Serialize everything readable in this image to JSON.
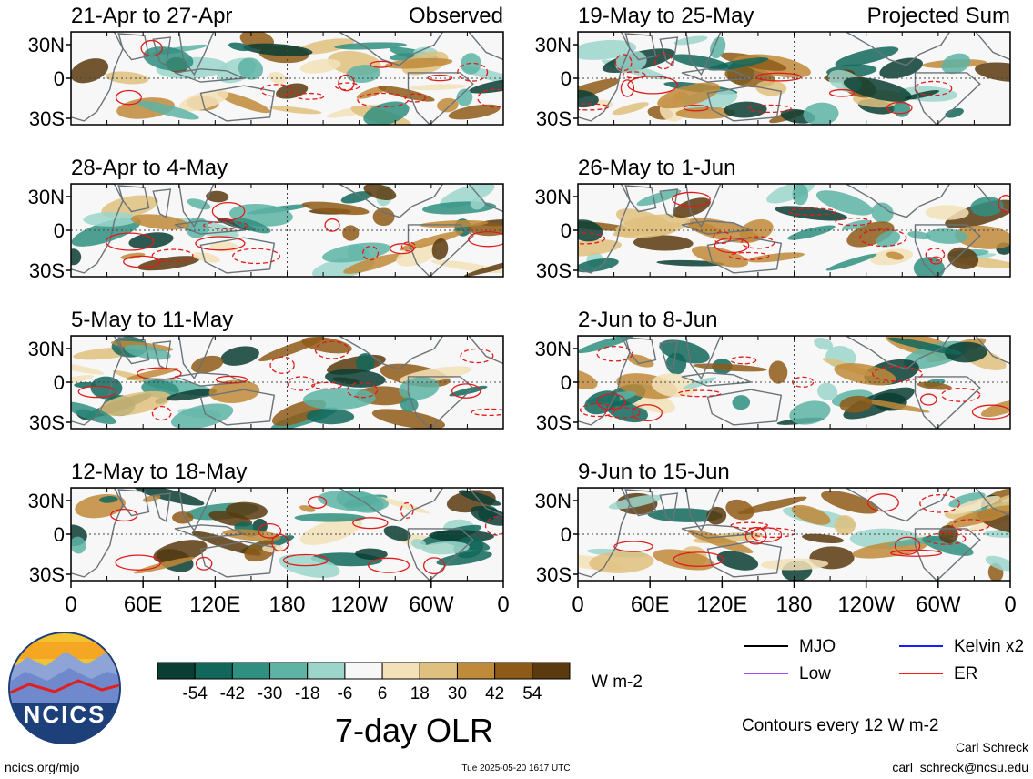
{
  "chart_data": {
    "type": "heatmap",
    "title": "7-day OLR",
    "units": "W m-2",
    "contour_note": "Contours every 12 W m-2",
    "columns": [
      {
        "label": "Observed"
      },
      {
        "label": "Projected Sum"
      }
    ],
    "panels": [
      {
        "col": 0,
        "row": 0,
        "period": "21-Apr to 27-Apr"
      },
      {
        "col": 0,
        "row": 1,
        "period": "28-Apr to 4-May"
      },
      {
        "col": 0,
        "row": 2,
        "period": "5-May to 11-May"
      },
      {
        "col": 0,
        "row": 3,
        "period": "12-May to 18-May"
      },
      {
        "col": 1,
        "row": 0,
        "period": "19-May to 25-May"
      },
      {
        "col": 1,
        "row": 1,
        "period": "26-May to 1-Jun"
      },
      {
        "col": 1,
        "row": 2,
        "period": "2-Jun to 8-Jun"
      },
      {
        "col": 1,
        "row": 3,
        "period": "9-Jun to 15-Jun"
      }
    ],
    "lat_ticks": [
      "30N",
      "0",
      "30S"
    ],
    "lon_ticks": [
      "0",
      "60E",
      "120E",
      "180",
      "120W",
      "60W",
      "0"
    ],
    "colorbar": {
      "ticks": [
        "-54",
        "-42",
        "-30",
        "-18",
        "-6",
        "6",
        "18",
        "30",
        "42",
        "54"
      ],
      "colors": [
        "#0a3d33",
        "#10675a",
        "#2f8f80",
        "#5db3a4",
        "#9cd6cb",
        "#f7f7f7",
        "#f3e2b8",
        "#dfc07e",
        "#bf8a3a",
        "#8e5a17",
        "#5a3a0e"
      ]
    },
    "legend": [
      {
        "name": "MJO",
        "color": "#000000"
      },
      {
        "name": "Kelvin x2",
        "color": "#1a1aff"
      },
      {
        "name": "Low",
        "color": "#9b4dff"
      },
      {
        "name": "ER",
        "color": "#ff1a1a"
      }
    ]
  },
  "footer": {
    "site": "ncics.org/mjo",
    "timestamp": "Tue 2025-05-20 1617 UTC",
    "author": "Carl Schreck",
    "email": "carl_schreck@ncsu.edu",
    "logo_text": "NCICS"
  }
}
